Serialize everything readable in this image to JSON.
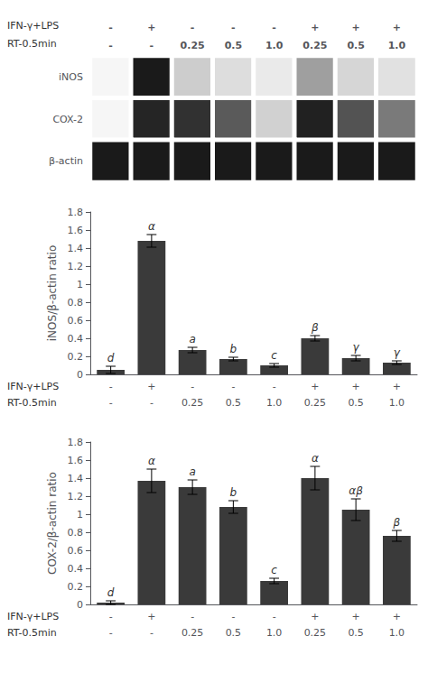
{
  "chart_data": [
    {
      "type": "heatmap",
      "rows": [
        "iNOS",
        "COX-2",
        "β-actin"
      ],
      "cells": [
        [
          0.04,
          1.0,
          0.22,
          0.15,
          0.09,
          0.42,
          0.18,
          0.13
        ],
        [
          0.04,
          0.95,
          0.9,
          0.72,
          0.2,
          0.97,
          0.75,
          0.58
        ],
        [
          1.0,
          1.0,
          1.0,
          1.0,
          1.0,
          1.0,
          1.0,
          1.0
        ]
      ],
      "zlim": [
        0,
        1
      ],
      "header_rows": [
        {
          "label": "IFN-γ+LPS",
          "values": [
            "-",
            "+",
            "-",
            "-",
            "-",
            "+",
            "+",
            "+"
          ]
        },
        {
          "label": "RT-0.5min",
          "values": [
            "-",
            "-",
            "0.25",
            "0.5",
            "1.0",
            "0.25",
            "0.5",
            "1.0"
          ]
        }
      ]
    },
    {
      "type": "bar",
      "values": [
        0.05,
        1.48,
        0.27,
        0.17,
        0.1,
        0.4,
        0.18,
        0.13
      ],
      "errors": [
        0.04,
        0.07,
        0.03,
        0.02,
        0.02,
        0.03,
        0.03,
        0.02
      ],
      "annotations": [
        "d",
        "α",
        "a",
        "b",
        "c",
        "β",
        "γ",
        "γ"
      ],
      "ylabel": "iNOS/β-actin ratio",
      "ylim": [
        0,
        1.8
      ],
      "yticks": [
        0,
        0.2,
        0.4,
        0.6,
        0.8,
        1,
        1.2,
        1.4,
        1.6,
        1.8
      ],
      "color": "#3a3a3a",
      "grid": false,
      "table_rows": [
        {
          "label": "IFN-γ+LPS",
          "values": [
            "-",
            "+",
            "-",
            "-",
            "-",
            "+",
            "+",
            "+"
          ]
        },
        {
          "label": "RT-0.5min",
          "values": [
            "-",
            "-",
            "0.25",
            "0.5",
            "1.0",
            "0.25",
            "0.5",
            "1.0"
          ]
        }
      ]
    },
    {
      "type": "bar",
      "values": [
        0.02,
        1.37,
        1.3,
        1.08,
        0.26,
        1.4,
        1.05,
        0.76
      ],
      "errors": [
        0.02,
        0.13,
        0.08,
        0.07,
        0.03,
        0.13,
        0.12,
        0.06
      ],
      "annotations": [
        "d",
        "α",
        "a",
        "b",
        "c",
        "α",
        "αβ",
        "β"
      ],
      "ylabel": "COX-2/β-actin ratio",
      "ylim": [
        0,
        1.8
      ],
      "yticks": [
        0,
        0.2,
        0.4,
        0.6,
        0.8,
        1,
        1.2,
        1.4,
        1.6,
        1.8
      ],
      "color": "#3a3a3a",
      "grid": false,
      "table_rows": [
        {
          "label": "IFN-γ+LPS",
          "values": [
            "-",
            "+",
            "-",
            "-",
            "-",
            "+",
            "+",
            "+"
          ]
        },
        {
          "label": "RT-0.5min",
          "values": [
            "-",
            "-",
            "0.25",
            "0.5",
            "1.0",
            "0.25",
            "0.5",
            "1.0"
          ]
        }
      ]
    }
  ]
}
